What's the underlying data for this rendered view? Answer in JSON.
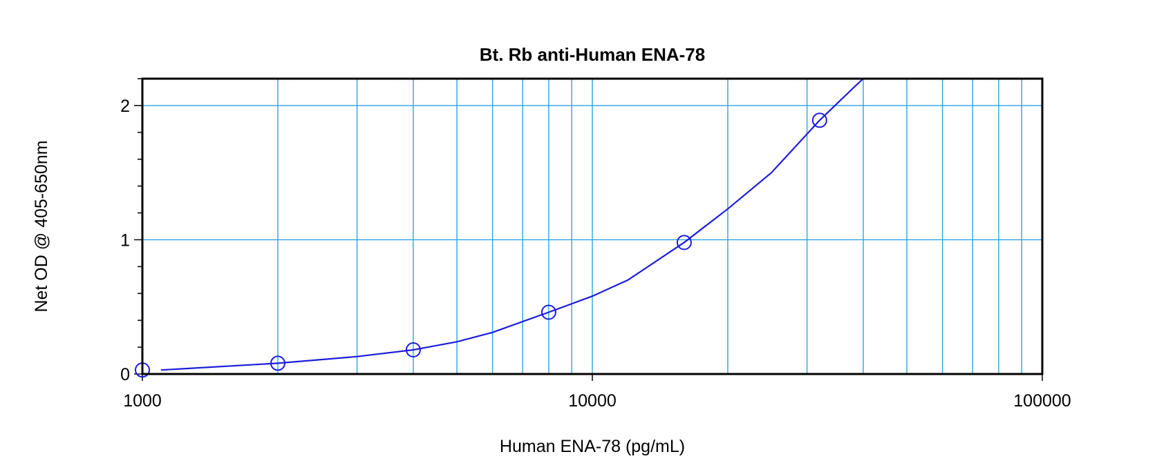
{
  "chart_data": {
    "type": "scatter",
    "title": "Bt. Rb anti-Human ENA-78",
    "xlabel": "Human ENA-78 (pg/mL)",
    "ylabel": "Net OD @ 405-650nm",
    "x_scale": "log",
    "xlim": [
      1000,
      100000
    ],
    "ylim": [
      0,
      2.2
    ],
    "x_ticks": [
      1000,
      10000,
      100000
    ],
    "x_tick_labels": [
      "1000",
      "10000",
      "100000"
    ],
    "y_ticks": [
      0,
      1,
      2
    ],
    "y_tick_labels": [
      "0",
      "1",
      "2"
    ],
    "grid": true,
    "legend": "none",
    "colors": {
      "series": "#1c1cd9",
      "grid": "#2ba4e0",
      "frame": "#000000"
    },
    "series": [
      {
        "marker": "open-circle",
        "x": [
          1000,
          2000,
          4000,
          8000,
          16000,
          32000
        ],
        "y": [
          0.03,
          0.08,
          0.18,
          0.46,
          0.98,
          1.89
        ]
      }
    ],
    "fit_curve": {
      "x": [
        1100,
        2000,
        3000,
        4000,
        5000,
        6000,
        8000,
        10000,
        12000,
        16000,
        20000,
        25000,
        32000,
        38000,
        40000
      ],
      "y": [
        0.03,
        0.08,
        0.13,
        0.18,
        0.24,
        0.31,
        0.46,
        0.58,
        0.7,
        0.98,
        1.23,
        1.5,
        1.89,
        2.13,
        2.2
      ]
    }
  }
}
